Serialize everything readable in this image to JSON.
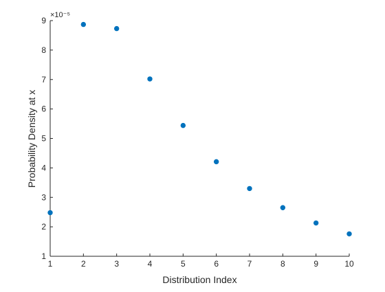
{
  "chart_data": {
    "type": "scatter",
    "xlabel": "Distribution Index",
    "ylabel": "Probability Density at x",
    "exponent_label": "×10⁻⁵",
    "x": [
      1,
      2,
      3,
      4,
      5,
      6,
      7,
      8,
      9,
      10
    ],
    "y": [
      2.48,
      8.87,
      8.73,
      7.02,
      5.44,
      4.21,
      3.3,
      2.65,
      2.13,
      1.76
    ],
    "y_scale": 1e-05,
    "xlim": [
      1,
      10
    ],
    "ylim": [
      1,
      9
    ],
    "x_ticks": [
      "1",
      "2",
      "3",
      "4",
      "5",
      "6",
      "7",
      "8",
      "9",
      "10"
    ],
    "y_ticks": [
      "1",
      "2",
      "3",
      "4",
      "5",
      "6",
      "7",
      "8",
      "9"
    ],
    "grid": false,
    "marker_color": "#0072BD"
  }
}
